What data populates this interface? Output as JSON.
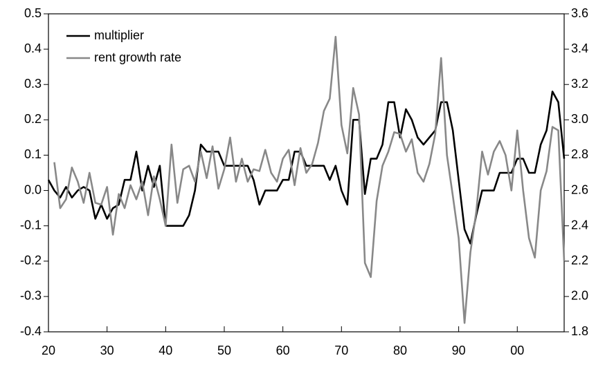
{
  "chart_data": {
    "type": "line",
    "x": [
      20,
      21,
      22,
      23,
      24,
      25,
      26,
      27,
      28,
      29,
      30,
      31,
      32,
      33,
      34,
      35,
      36,
      37,
      38,
      39,
      40,
      41,
      42,
      43,
      44,
      45,
      46,
      47,
      48,
      49,
      50,
      51,
      52,
      53,
      54,
      55,
      56,
      57,
      58,
      59,
      60,
      61,
      62,
      63,
      64,
      65,
      66,
      67,
      68,
      69,
      70,
      71,
      72,
      73,
      74,
      75,
      76,
      77,
      78,
      79,
      80,
      81,
      82,
      83,
      84,
      85,
      86,
      87,
      88,
      89,
      90,
      91,
      92,
      93,
      94,
      95,
      96,
      97,
      98,
      99,
      100,
      101,
      102,
      103,
      104,
      105,
      106,
      107,
      108
    ],
    "series": [
      {
        "name": "multiplier",
        "color": "#000000",
        "axis": "y",
        "values": [
          0.03,
          0.0,
          -0.02,
          0.01,
          -0.02,
          0.0,
          0.01,
          0.0,
          -0.08,
          -0.04,
          -0.08,
          -0.05,
          -0.04,
          0.03,
          0.03,
          0.11,
          0.0,
          0.07,
          0.01,
          0.07,
          -0.1,
          -0.1,
          -0.1,
          -0.1,
          -0.07,
          0.0,
          0.13,
          0.11,
          0.11,
          0.11,
          0.07,
          0.07,
          0.07,
          0.07,
          0.07,
          0.03,
          -0.04,
          0.0,
          0.0,
          0.0,
          0.03,
          0.03,
          0.11,
          0.11,
          0.07,
          0.07,
          0.07,
          0.07,
          0.03,
          0.07,
          0.0,
          -0.04,
          0.2,
          0.2,
          -0.01,
          0.09,
          0.09,
          0.13,
          0.25,
          0.25,
          0.15,
          0.23,
          0.2,
          0.15,
          0.13,
          0.15,
          0.17,
          0.25,
          0.25,
          0.17,
          0.03,
          -0.11,
          -0.15,
          -0.07,
          0.0,
          0.0,
          0.0,
          0.05,
          0.05,
          0.05,
          0.09,
          0.09,
          0.05,
          0.05,
          0.13,
          0.17,
          0.28,
          0.25,
          0.09
        ]
      },
      {
        "name": "rent growth rate",
        "color": "#888888",
        "axis": "y2",
        "values": [
          null,
          2.76,
          2.5,
          2.55,
          2.73,
          2.65,
          2.53,
          2.7,
          2.53,
          2.52,
          2.62,
          2.35,
          2.58,
          2.5,
          2.63,
          2.55,
          2.65,
          2.46,
          2.68,
          2.55,
          2.4,
          2.86,
          2.53,
          2.72,
          2.74,
          2.65,
          2.82,
          2.67,
          2.85,
          2.61,
          2.72,
          2.9,
          2.65,
          2.78,
          2.65,
          2.72,
          2.71,
          2.83,
          2.7,
          2.65,
          2.78,
          2.83,
          2.63,
          2.84,
          2.7,
          2.75,
          2.87,
          3.05,
          3.12,
          3.47,
          2.97,
          2.81,
          3.18,
          3.03,
          2.19,
          2.11,
          2.54,
          2.74,
          2.82,
          2.93,
          2.92,
          2.82,
          2.89,
          2.7,
          2.65,
          2.75,
          2.92,
          3.35,
          2.8,
          2.57,
          2.33,
          1.85,
          2.25,
          2.48,
          2.82,
          2.69,
          2.82,
          2.88,
          2.8,
          2.6,
          2.94,
          2.6,
          2.33,
          2.22,
          2.6,
          2.71,
          2.96,
          2.94,
          2.2
        ]
      }
    ],
    "xlim": [
      20,
      108
    ],
    "xticks": [
      20,
      30,
      40,
      50,
      60,
      70,
      80,
      90,
      {
        "value": 100,
        "label": "00"
      }
    ],
    "ylim": [
      -0.4,
      0.5
    ],
    "yticks": [
      -0.4,
      -0.3,
      -0.2,
      -0.1,
      {
        "value": 0,
        "label": "0.0"
      },
      0.1,
      0.2,
      0.3,
      0.4,
      0.5
    ],
    "y2lim": [
      1.8,
      3.6
    ],
    "y2ticks": [
      1.8,
      {
        "value": 2,
        "label": "2.0"
      },
      2.2,
      2.4,
      2.6,
      2.8,
      {
        "value": 3,
        "label": "3.0"
      },
      3.2,
      3.4,
      3.6
    ],
    "legend": "upper-left"
  }
}
